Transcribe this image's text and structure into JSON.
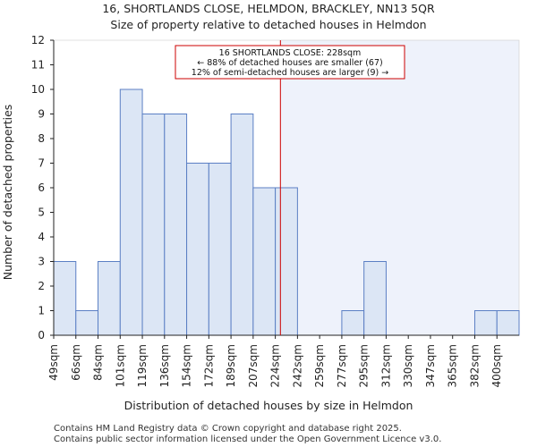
{
  "chart_data": {
    "type": "bar",
    "title": "16, SHORTLANDS CLOSE, HELMDON, BRACKLEY, NN13 5QR",
    "subtitle": "Size of property relative to detached houses in Helmdon",
    "xlabel": "Distribution of detached houses by size in Helmdon",
    "ylabel": "Number of detached properties",
    "categories": [
      "49sqm",
      "66sqm",
      "84sqm",
      "101sqm",
      "119sqm",
      "136sqm",
      "154sqm",
      "172sqm",
      "189sqm",
      "207sqm",
      "224sqm",
      "242sqm",
      "259sqm",
      "277sqm",
      "295sqm",
      "312sqm",
      "330sqm",
      "347sqm",
      "365sqm",
      "382sqm",
      "400sqm"
    ],
    "values": [
      3,
      1,
      3,
      10,
      9,
      9,
      7,
      7,
      9,
      6,
      6,
      0,
      0,
      1,
      3,
      0,
      0,
      0,
      0,
      1,
      1
    ],
    "ylim": [
      0,
      12
    ],
    "yticks": [
      0,
      1,
      2,
      3,
      4,
      5,
      6,
      7,
      8,
      9,
      10,
      11,
      12
    ],
    "marker": {
      "value_sqm": 228,
      "bin_index_position": 10.23,
      "color": "#cc0000"
    },
    "annotation": {
      "line1": "16 SHORTLANDS CLOSE: 228sqm",
      "line2": "← 88% of detached houses are smaller (67)",
      "line3": "12% of semi-detached houses are larger (9) →"
    },
    "colors": {
      "bar_fill": "#dce6f5",
      "bar_stroke": "#5b7fc4",
      "highlight_region": "#eef2fb",
      "axis": "#222222",
      "annotation_border": "#cc0000"
    }
  },
  "footer": {
    "line1": "Contains HM Land Registry data © Crown copyright and database right 2025.",
    "line2": "Contains public sector information licensed under the Open Government Licence v3.0."
  }
}
